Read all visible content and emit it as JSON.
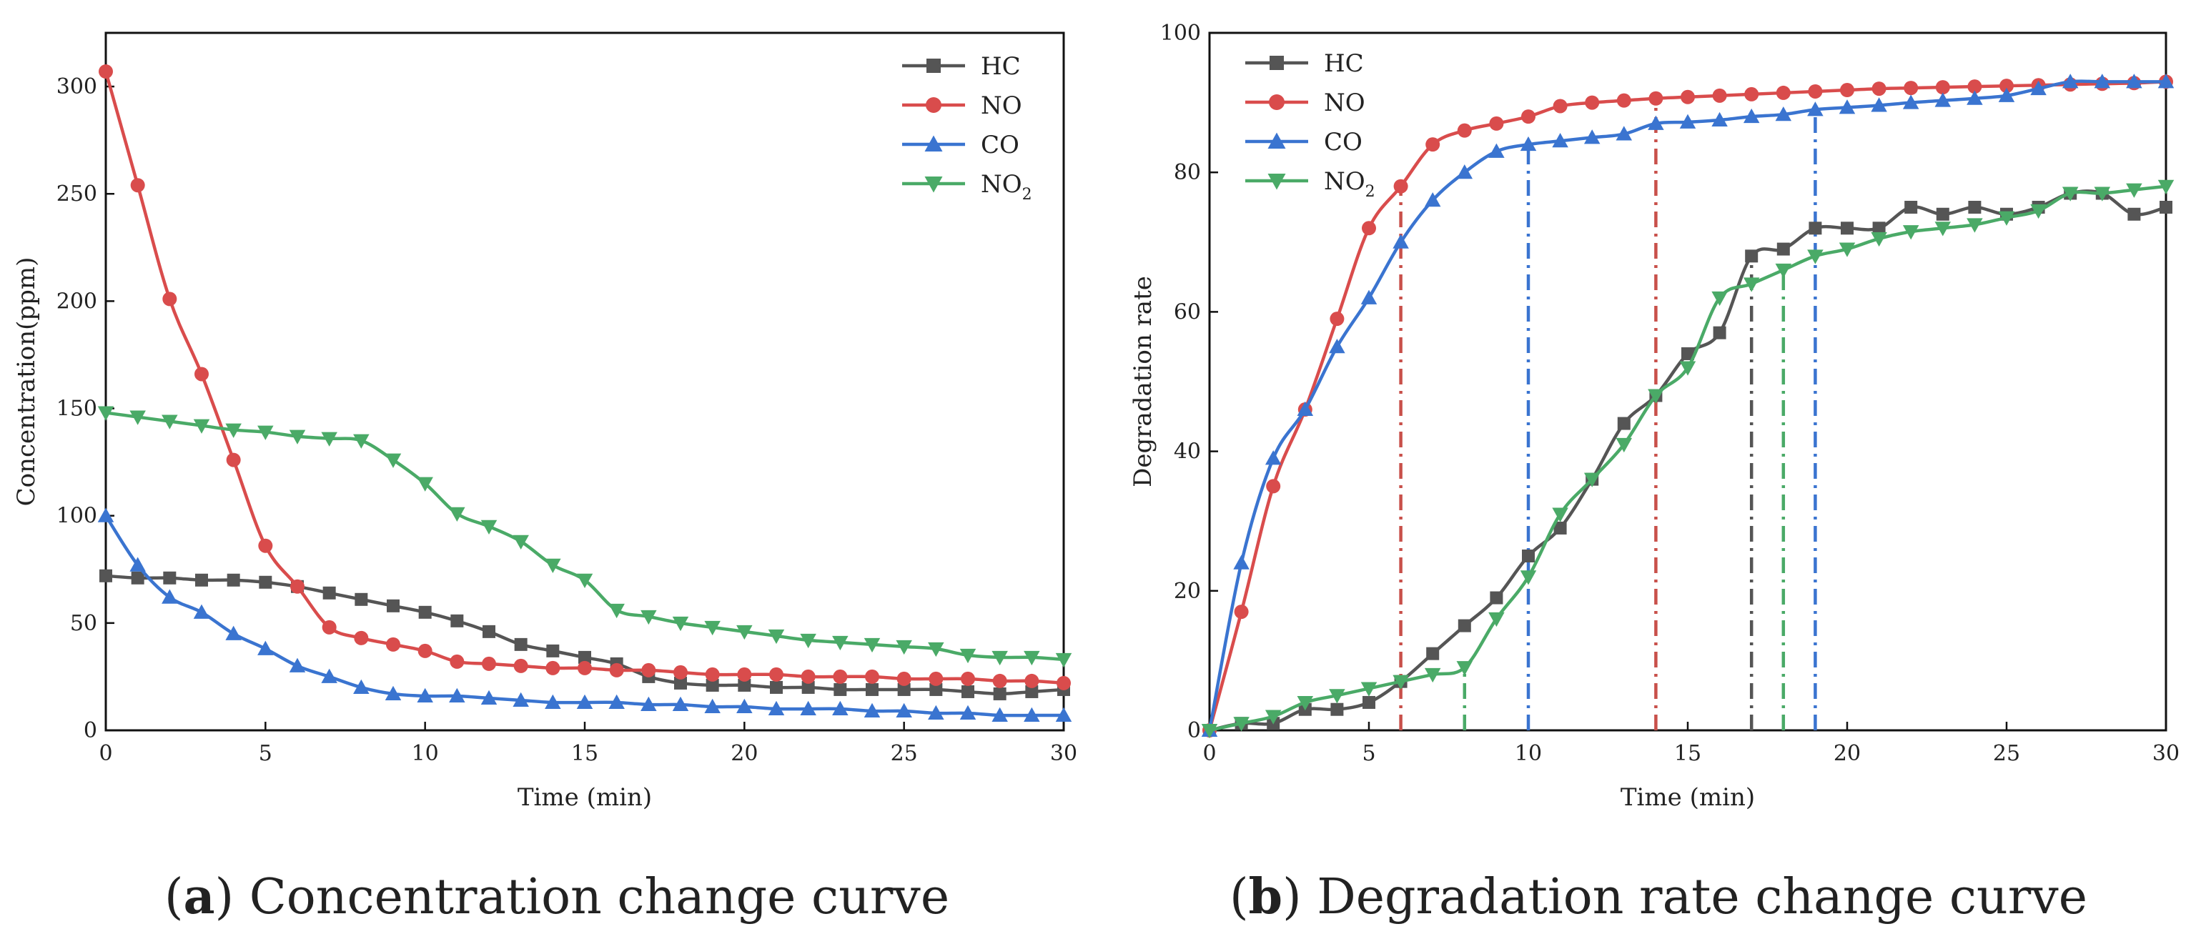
{
  "chart_data": [
    {
      "type": "line",
      "panel": "a",
      "title": "",
      "xlabel": "Time (min)",
      "ylabel": "Concentration(ppm)",
      "xlim": [
        0,
        30
      ],
      "ylim": [
        0,
        325
      ],
      "xticks": [
        0,
        5,
        10,
        15,
        20,
        25,
        30
      ],
      "yticks": [
        0,
        50,
        100,
        150,
        200,
        250,
        300
      ],
      "legend_position": "top-right",
      "x": [
        0,
        1,
        2,
        3,
        4,
        5,
        6,
        7,
        8,
        9,
        10,
        11,
        12,
        13,
        14,
        15,
        16,
        17,
        18,
        19,
        20,
        21,
        22,
        23,
        24,
        25,
        26,
        27,
        28,
        29,
        30
      ],
      "series": [
        {
          "name": "HC",
          "color": "#555555",
          "marker": "square",
          "values": [
            72,
            71,
            71,
            70,
            70,
            69,
            67,
            64,
            61,
            58,
            55,
            51,
            46,
            40,
            37,
            34,
            31,
            25,
            22,
            21,
            21,
            20,
            20,
            19,
            19,
            19,
            19,
            18,
            17,
            18,
            19
          ]
        },
        {
          "name": "NO",
          "color": "#d94c4c",
          "marker": "circle",
          "values": [
            307,
            254,
            201,
            166,
            126,
            86,
            67,
            48,
            43,
            40,
            37,
            32,
            31,
            30,
            29,
            29,
            28,
            28,
            27,
            26,
            26,
            26,
            25,
            25,
            25,
            24,
            24,
            24,
            23,
            23,
            22
          ]
        },
        {
          "name": "CO",
          "color": "#3a74d0",
          "marker": "triangle-up",
          "values": [
            100,
            77,
            62,
            55,
            45,
            38,
            30,
            25,
            20,
            17,
            16,
            16,
            15,
            14,
            13,
            13,
            13,
            12,
            12,
            11,
            11,
            10,
            10,
            10,
            9,
            9,
            8,
            8,
            7,
            7,
            7
          ]
        },
        {
          "name": "NO2",
          "legend_main": "NO",
          "legend_sub": "2",
          "color": "#4aaa67",
          "marker": "triangle-down",
          "values": [
            148,
            146,
            144,
            142,
            140,
            139,
            137,
            136,
            135,
            126,
            115,
            101,
            95,
            88,
            77,
            70,
            56,
            53,
            50,
            48,
            46,
            44,
            42,
            41,
            40,
            39,
            38,
            35,
            34,
            34,
            33
          ]
        }
      ]
    },
    {
      "type": "line",
      "panel": "b",
      "title": "",
      "xlabel": "Time (min)",
      "ylabel": "Degradation rate",
      "xlim": [
        0,
        30
      ],
      "ylim": [
        0,
        100
      ],
      "xticks": [
        0,
        5,
        10,
        15,
        20,
        25,
        30
      ],
      "yticks": [
        0,
        20,
        40,
        60,
        80,
        100
      ],
      "legend_position": "top-left",
      "x": [
        0,
        1,
        2,
        3,
        4,
        5,
        6,
        7,
        8,
        9,
        10,
        11,
        12,
        13,
        14,
        15,
        16,
        17,
        18,
        19,
        20,
        21,
        22,
        23,
        24,
        25,
        26,
        27,
        28,
        29,
        30
      ],
      "series": [
        {
          "name": "HC",
          "color": "#555555",
          "marker": "square",
          "values": [
            0,
            1,
            1,
            3,
            3,
            4,
            7,
            11,
            15,
            19,
            25,
            29,
            36,
            44,
            48,
            54,
            57,
            68,
            69,
            72,
            72,
            72,
            75,
            74,
            75,
            74,
            75,
            77,
            77,
            74,
            75
          ]
        },
        {
          "name": "NO",
          "color": "#d94c4c",
          "marker": "circle",
          "values": [
            0,
            17,
            35,
            46,
            59,
            72,
            78,
            84,
            86,
            87,
            88,
            89.5,
            90,
            90.3,
            90.6,
            90.8,
            91,
            91.2,
            91.4,
            91.6,
            91.8,
            92,
            92.1,
            92.2,
            92.3,
            92.4,
            92.5,
            92.6,
            92.7,
            92.8,
            93
          ]
        },
        {
          "name": "CO",
          "color": "#3a74d0",
          "marker": "triangle-up",
          "values": [
            0,
            24,
            39,
            46,
            55,
            62,
            70,
            76,
            80,
            83,
            84,
            84.5,
            85,
            85.5,
            87,
            87.2,
            87.5,
            88,
            88.3,
            89,
            89.3,
            89.6,
            90,
            90.3,
            90.6,
            91,
            92,
            93,
            93,
            93,
            93
          ]
        },
        {
          "name": "NO2",
          "legend_main": "NO",
          "legend_sub": "2",
          "color": "#4aaa67",
          "marker": "triangle-down",
          "values": [
            0,
            1,
            2,
            4,
            5,
            6,
            7,
            8,
            9,
            16,
            22,
            31,
            36,
            41,
            48,
            52,
            62,
            64,
            66,
            68,
            69,
            70.5,
            71.5,
            72,
            72.5,
            73.5,
            74.5,
            77,
            77,
            77.5,
            78
          ]
        }
      ],
      "reference_lines": [
        {
          "x": 6,
          "color": "#c8504a",
          "y_top": 78
        },
        {
          "x": 8,
          "color": "#4aaa67",
          "y_top": 9
        },
        {
          "x": 10,
          "color": "#3a74d0",
          "y_top": 84
        },
        {
          "x": 14,
          "color": "#c8504a",
          "y_top": 90.5
        },
        {
          "x": 17,
          "color": "#555555",
          "y_top": 68
        },
        {
          "x": 18,
          "color": "#4aaa67",
          "y_top": 66
        },
        {
          "x": 19,
          "color": "#3a74d0",
          "y_top": 89
        }
      ]
    }
  ],
  "captions": {
    "a": {
      "letter": "a",
      "text": " Concentration change curve"
    },
    "b": {
      "letter": "b",
      "text": " Degradation rate change curve"
    }
  }
}
